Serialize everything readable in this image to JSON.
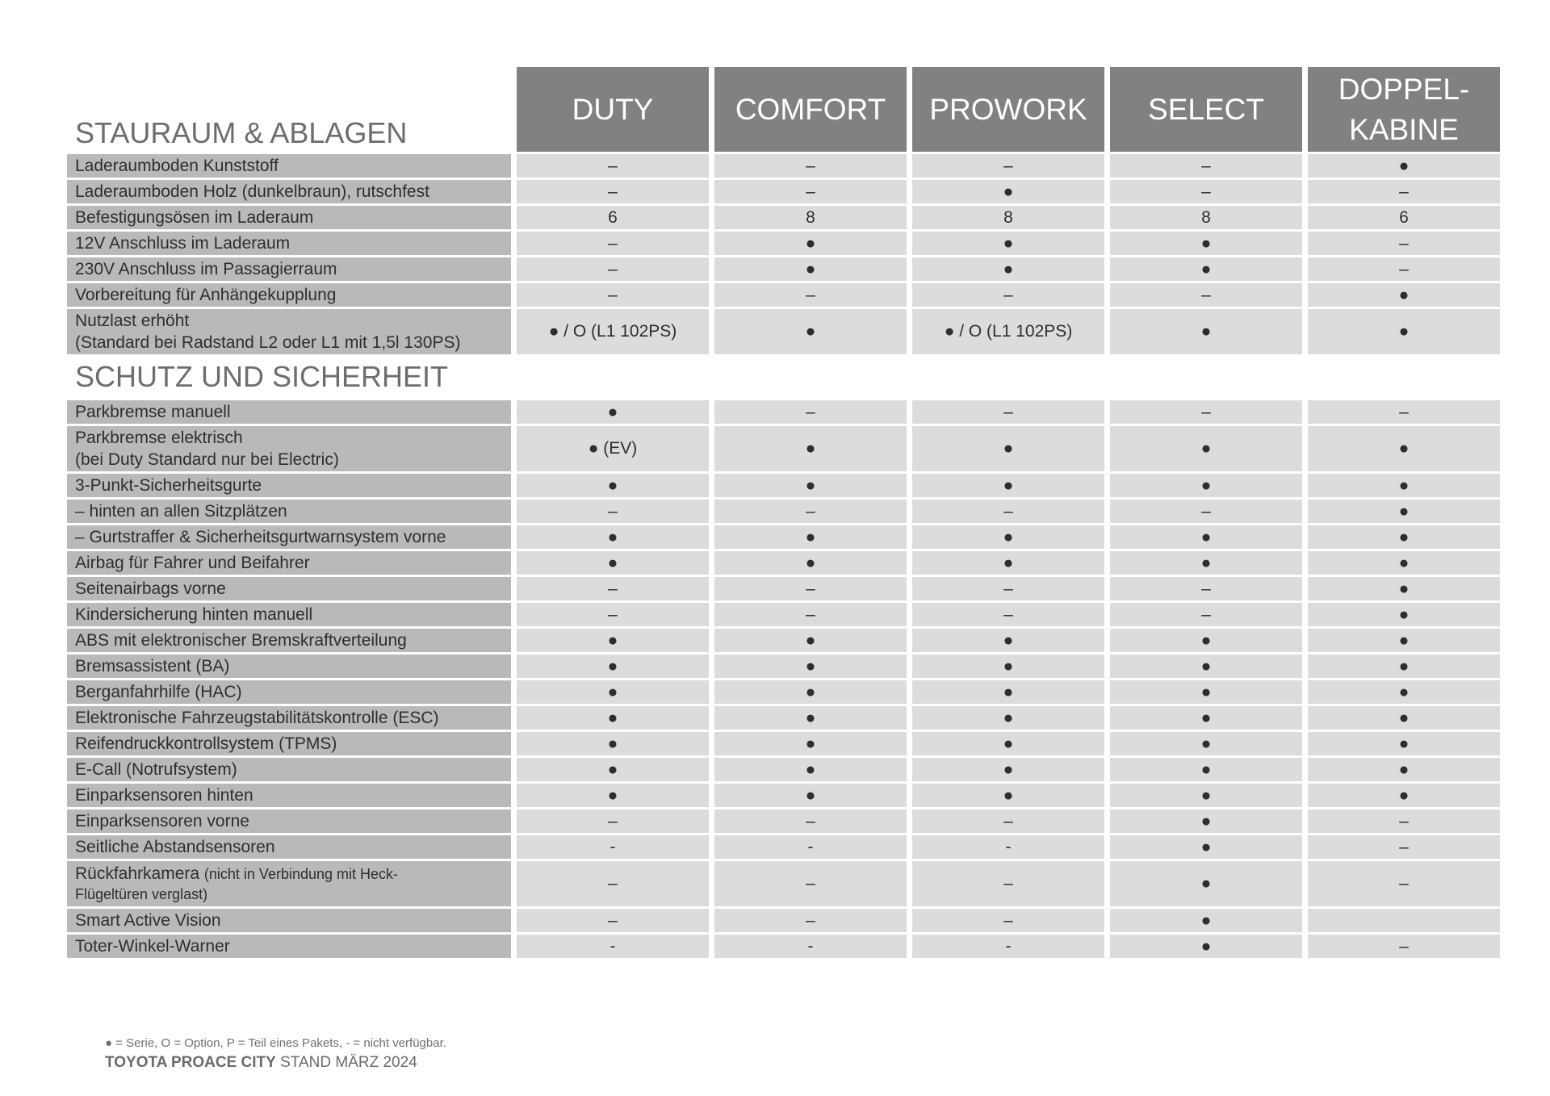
{
  "columns": [
    "DUTY",
    "COMFORT",
    "PROWORK",
    "SELECT",
    "DOPPEL-\nKABINE"
  ],
  "sections": [
    {
      "title": "STAURAUM & ABLAGEN",
      "rows": [
        {
          "label": "Laderaumboden Kunststoff",
          "values": [
            "–",
            "–",
            "–",
            "–",
            "●"
          ]
        },
        {
          "label": "Laderaumboden Holz (dunkelbraun), rutschfest",
          "values": [
            "–",
            "–",
            "●",
            "–",
            "–"
          ]
        },
        {
          "label": "Befestigungsösen im Laderaum",
          "values": [
            "6",
            "8",
            "8",
            "8",
            "6"
          ]
        },
        {
          "label": "12V Anschluss im Laderaum",
          "values": [
            "–",
            "●",
            "●",
            "●",
            "–"
          ]
        },
        {
          "label": "230V Anschluss im Passagierraum",
          "values": [
            "–",
            "●",
            "●",
            "●",
            "–"
          ]
        },
        {
          "label": "Vorbereitung für Anhängekupplung",
          "values": [
            "–",
            "–",
            "–",
            "–",
            "●"
          ]
        },
        {
          "label": "Nutzlast erhöht",
          "sub": "(Standard bei Radstand L2 oder L1 mit 1,5l 130PS)",
          "values": [
            "● / O (L1 102PS)",
            "●",
            "● / O (L1 102PS)",
            "●",
            "●"
          ]
        }
      ]
    },
    {
      "title": "SCHUTZ UND SICHERHEIT",
      "rows": [
        {
          "label": "Parkbremse manuell",
          "values": [
            "●",
            "–",
            "–",
            "–",
            "–"
          ]
        },
        {
          "label": "Parkbremse elektrisch",
          "sub": "(bei Duty Standard nur bei Electric)",
          "values": [
            "● (EV)",
            "●",
            "●",
            "●",
            "●"
          ]
        },
        {
          "label": "3-Punkt-Sicherheitsgurte",
          "values": [
            "●",
            "●",
            "●",
            "●",
            "●"
          ]
        },
        {
          "label": "– hinten an allen Sitzplätzen",
          "values": [
            "–",
            "–",
            "–",
            "–",
            "●"
          ]
        },
        {
          "label": "– Gurtstraffer & Sicherheitsgurtwarnsystem vorne",
          "values": [
            "●",
            "●",
            "●",
            "●",
            "●"
          ]
        },
        {
          "label": "Airbag für Fahrer und Beifahrer",
          "values": [
            "●",
            "●",
            "●",
            "●",
            "●"
          ]
        },
        {
          "label": "Seitenairbags vorne",
          "values": [
            "–",
            "–",
            "–",
            "–",
            "●"
          ]
        },
        {
          "label": "Kindersicherung hinten manuell",
          "values": [
            "–",
            "–",
            "–",
            "–",
            "●"
          ]
        },
        {
          "label": "ABS mit elektronischer Bremskraftverteilung",
          "values": [
            "●",
            "●",
            "●",
            "●",
            "●"
          ]
        },
        {
          "label": "Bremsassistent (BA)",
          "values": [
            "●",
            "●",
            "●",
            "●",
            "●"
          ]
        },
        {
          "label": "Berganfahrhilfe (HAC)",
          "values": [
            "●",
            "●",
            "●",
            "●",
            "●"
          ]
        },
        {
          "label": "Elektronische Fahrzeugstabilitätskontrolle (ESC)",
          "values": [
            "●",
            "●",
            "●",
            "●",
            "●"
          ]
        },
        {
          "label": "Reifendruckkontrollsystem (TPMS)",
          "values": [
            "●",
            "●",
            "●",
            "●",
            "●"
          ]
        },
        {
          "label": "E-Call (Notrufsystem)",
          "values": [
            "●",
            "●",
            "●",
            "●",
            "●"
          ]
        },
        {
          "label": "Einparksensoren hinten",
          "values": [
            "●",
            "●",
            "●",
            "●",
            "●"
          ]
        },
        {
          "label": "Einparksensoren vorne",
          "values": [
            "–",
            "–",
            "–",
            "●",
            "–"
          ]
        },
        {
          "label": "Seitliche Abstandsensoren",
          "values": [
            "-",
            "-",
            "-",
            "●",
            "–"
          ]
        },
        {
          "label": "Rückfahrkamera",
          "note": "(nicht in Verbindung mit Heck-",
          "sub_note": "Flügeltüren verglast)",
          "values": [
            "–",
            "–",
            "–",
            "●",
            "–"
          ]
        },
        {
          "label": "Smart Active Vision",
          "values": [
            "–",
            "–",
            "–",
            "●",
            ""
          ]
        },
        {
          "label": "Toter-Winkel-Warner",
          "values": [
            "-",
            "-",
            "-",
            "●",
            "–"
          ]
        }
      ]
    }
  ],
  "footer": {
    "legend": "● = Serie, O = Option, P = Teil eines Pakets, - = nicht verfügbar.",
    "brand": "TOYOTA PROACE CITY",
    "date": "STAND MÄRZ 2024"
  },
  "colors": {
    "header": "#818181",
    "label_cell": "#b9b9b9",
    "value_cell": "#dcdcdc"
  }
}
